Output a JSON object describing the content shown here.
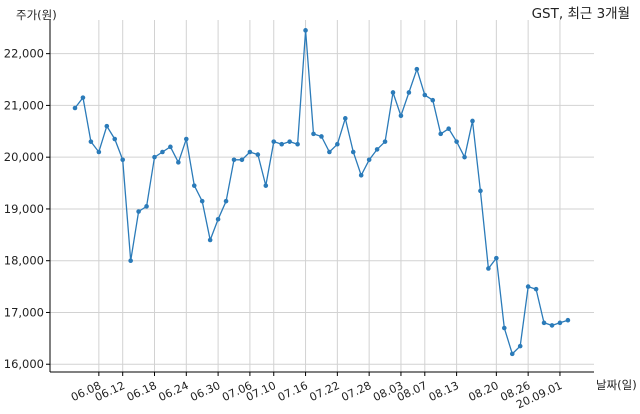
{
  "chart_data": {
    "type": "line",
    "title": "GST, 최근 3개월",
    "ylabel": "주가(원)",
    "xlabel": "날짜(일)",
    "ylim": [
      15850,
      22650
    ],
    "yticks": [
      16000,
      17000,
      18000,
      19000,
      20000,
      21000,
      22000
    ],
    "ytick_labels": [
      "16,000",
      "17,000",
      "18,000",
      "19,000",
      "20,000",
      "21,000",
      "22,000"
    ],
    "xticks": [
      "06.08",
      "06.12",
      "06.18",
      "06.24",
      "06.30",
      "07.06",
      "07.10",
      "07.16",
      "07.22",
      "07.28",
      "08.03",
      "08.07",
      "08.13",
      "08.20",
      "08.26",
      "20.09.01"
    ],
    "xtick_positions": [
      3,
      6,
      10,
      14,
      18,
      22,
      25,
      29,
      33,
      37,
      41,
      44,
      48,
      53,
      57,
      61
    ],
    "grid": true,
    "color": "#2b7bb9",
    "series": [
      {
        "values": [
          20950,
          21150,
          20300,
          20100,
          20600,
          20350,
          19950,
          18000,
          18950,
          19050,
          20000,
          20100,
          20200,
          19900,
          20350,
          19450,
          19150,
          18400,
          18800,
          19150,
          19950,
          19950,
          20100,
          20050,
          19450,
          20300,
          20250,
          20300,
          20250,
          22450,
          20450,
          20400,
          20100,
          20250,
          20750,
          20100,
          19650,
          19950,
          20150,
          20300,
          21250,
          20800,
          21250,
          21700,
          21200,
          21100,
          20450,
          20550,
          20300,
          20000,
          20700,
          19350,
          17850,
          18050,
          16700,
          16200,
          16350,
          17500,
          17450,
          16800,
          16750,
          16800,
          16850
        ]
      }
    ]
  }
}
